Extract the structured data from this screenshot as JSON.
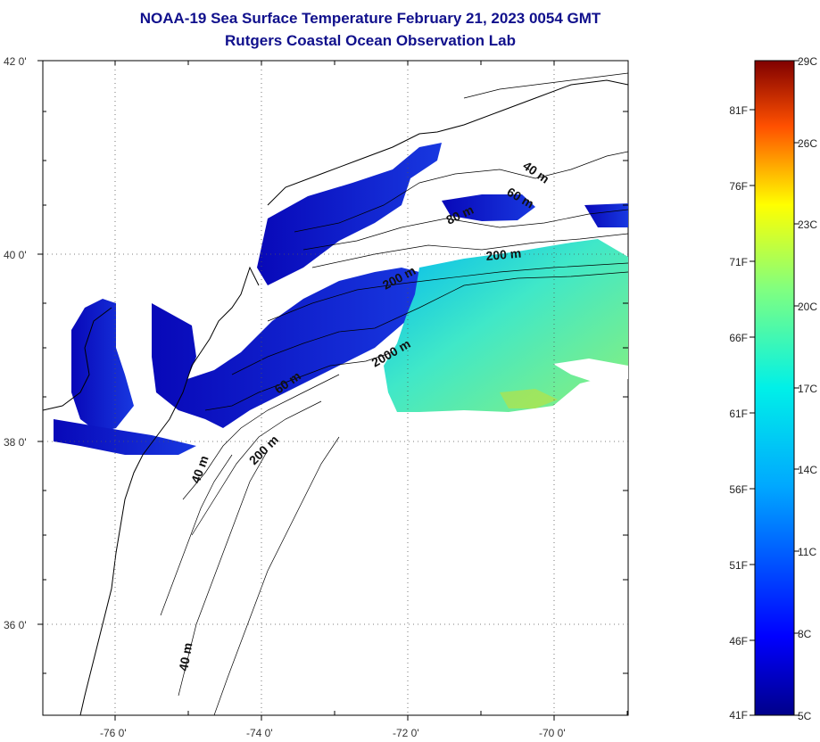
{
  "title": {
    "line1": "NOAA-19 Sea Surface Temperature February 21, 2023 0054 GMT",
    "line2": "Rutgers Coastal Ocean Observation Lab"
  },
  "map": {
    "lat_ticks": [
      "42 0'",
      "40 0'",
      "38 0'",
      "36 0'"
    ],
    "lon_ticks": [
      "-76 0'",
      "-74 0'",
      "-72 0'",
      "-70 0'"
    ],
    "contour_labels": [
      "40 m",
      "60 m",
      "80 m",
      "200 m",
      "200 m",
      "2000 m",
      "60 m",
      "200 m",
      "40 m",
      "40 m"
    ],
    "colors": {
      "cold": "#1010c8",
      "warm": "#5fe8b0",
      "land": "#ffffff",
      "coast": "#000000"
    }
  },
  "colorbar": {
    "celsius": [
      "29C",
      "26C",
      "23C",
      "20C",
      "17C",
      "14C",
      "11C",
      "8C",
      "5C"
    ],
    "fahrenheit": [
      "81F",
      "76F",
      "71F",
      "66F",
      "61F",
      "56F",
      "51F",
      "46F",
      "41F"
    ],
    "range_c": [
      5,
      29
    ]
  }
}
